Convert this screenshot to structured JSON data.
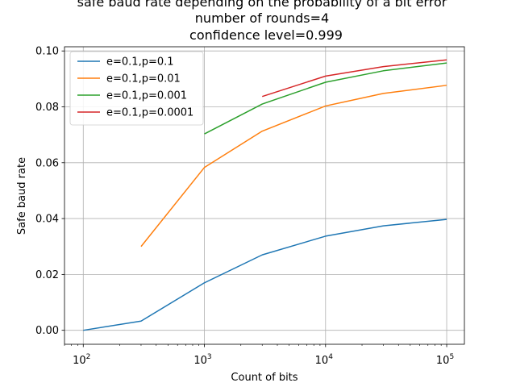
{
  "chart_data": {
    "type": "line",
    "title_lines": [
      "safe baud rate depending on the probability of a bit error",
      "number of rounds=4",
      "confidence level=0.999"
    ],
    "xlabel": "Count of bits",
    "ylabel": "Safe baud rate",
    "x_scale": "log",
    "xlim": [
      70,
      140000
    ],
    "ylim": [
      -0.005,
      0.1015
    ],
    "grid": true,
    "legend_position": "top-left",
    "x_ticks": [
      {
        "value": 100,
        "base": "10",
        "exp": "2"
      },
      {
        "value": 1000,
        "base": "10",
        "exp": "3"
      },
      {
        "value": 10000,
        "base": "10",
        "exp": "4"
      },
      {
        "value": 100000,
        "base": "10",
        "exp": "5"
      }
    ],
    "y_ticks": [
      {
        "value": 0.0,
        "label": "0.00"
      },
      {
        "value": 0.02,
        "label": "0.02"
      },
      {
        "value": 0.04,
        "label": "0.04"
      },
      {
        "value": 0.06,
        "label": "0.06"
      },
      {
        "value": 0.08,
        "label": "0.08"
      },
      {
        "value": 0.1,
        "label": "0.10"
      }
    ],
    "series": [
      {
        "name": "e=0.1,p=0.1",
        "color": "#1f77b4",
        "x": [
          100,
          300,
          1000,
          3000,
          10000,
          30000,
          100000
        ],
        "y": [
          0.0,
          0.0033,
          0.017,
          0.027,
          0.0337,
          0.0374,
          0.0397
        ]
      },
      {
        "name": "e=0.1,p=0.01",
        "color": "#ff7f0e",
        "x": [
          300,
          1000,
          3000,
          10000,
          30000,
          100000
        ],
        "y": [
          0.03,
          0.0583,
          0.0713,
          0.0803,
          0.0848,
          0.0877
        ]
      },
      {
        "name": "e=0.1,p=0.001",
        "color": "#2ca02c",
        "x": [
          1000,
          3000,
          10000,
          30000,
          100000
        ],
        "y": [
          0.0703,
          0.081,
          0.0888,
          0.0929,
          0.0957
        ]
      },
      {
        "name": "e=0.1,p=0.0001",
        "color": "#d62728",
        "x": [
          3000,
          10000,
          30000,
          100000
        ],
        "y": [
          0.0837,
          0.091,
          0.0944,
          0.0968
        ]
      }
    ]
  }
}
